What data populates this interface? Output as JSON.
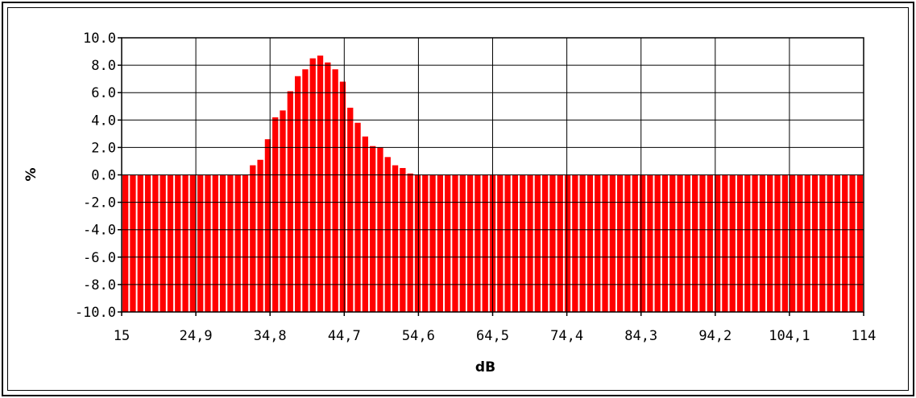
{
  "chart_data": {
    "type": "bar",
    "xlabel": "dB",
    "ylabel": "%",
    "ylim": [
      -10.0,
      10.0
    ],
    "xlim": [
      15,
      114
    ],
    "x_tick_labels": [
      "15",
      "24,9",
      "34,8",
      "44,7",
      "54,6",
      "64,5",
      "74,4",
      "84,3",
      "94,2",
      "104,1",
      "114"
    ],
    "x_ticks": [
      15,
      24.9,
      34.8,
      44.7,
      54.6,
      64.5,
      74.4,
      84.3,
      94.2,
      104.1,
      114
    ],
    "y_tick_labels": [
      "10.0",
      "8.0",
      "6.0",
      "4.0",
      "2.0",
      "0.0",
      "-2.0",
      "-4.0",
      "-6.0",
      "-8.0",
      "-10.0"
    ],
    "y_ticks": [
      10,
      8,
      6,
      4,
      2,
      0,
      -2,
      -4,
      -6,
      -8,
      -10
    ],
    "grid": true,
    "bar_color": "#ff0000",
    "baseline": -10.0,
    "series": [
      {
        "x": [
          16,
          17,
          18,
          19,
          20,
          21,
          22,
          23,
          24,
          25,
          26,
          27,
          28,
          29,
          30,
          31,
          32,
          33,
          34,
          35,
          36,
          37,
          38,
          39,
          40,
          41,
          42,
          43,
          44,
          45,
          46,
          47,
          48,
          49,
          50,
          51,
          52,
          53,
          54,
          55,
          56,
          57,
          58,
          59,
          60,
          61,
          62,
          63,
          64,
          65,
          66,
          67,
          68,
          69,
          70,
          71,
          72,
          73,
          74,
          75,
          76,
          77,
          78,
          79,
          80,
          81,
          82,
          83,
          84,
          85,
          86,
          87,
          88,
          89,
          90,
          91,
          92,
          93,
          94,
          95,
          96,
          97,
          98,
          99,
          100,
          101,
          102,
          103,
          104,
          105,
          106,
          107,
          108,
          109,
          110,
          111,
          112,
          113,
          114
        ],
        "values": [
          0,
          0,
          0,
          0,
          0,
          0,
          0,
          0,
          0,
          0,
          0,
          0,
          0,
          0,
          0,
          0,
          0,
          0.7,
          1.1,
          2.6,
          4.2,
          4.7,
          6.1,
          7.2,
          7.7,
          8.5,
          8.7,
          8.2,
          7.7,
          6.8,
          4.9,
          3.8,
          2.8,
          2.1,
          2.0,
          1.3,
          0.7,
          0.5,
          0.1,
          0,
          0,
          0,
          0,
          0,
          0,
          0,
          0,
          0,
          0,
          0,
          0,
          0,
          0,
          0,
          0,
          0,
          0,
          0,
          0,
          0,
          0,
          0,
          0,
          0,
          0,
          0,
          0,
          0,
          0,
          0,
          0,
          0,
          0,
          0,
          0,
          0,
          0,
          0,
          0,
          0,
          0,
          0,
          0,
          0,
          0,
          0,
          0,
          0,
          0,
          0,
          0,
          0,
          0,
          0,
          0,
          0,
          0,
          0,
          0
        ]
      }
    ]
  }
}
